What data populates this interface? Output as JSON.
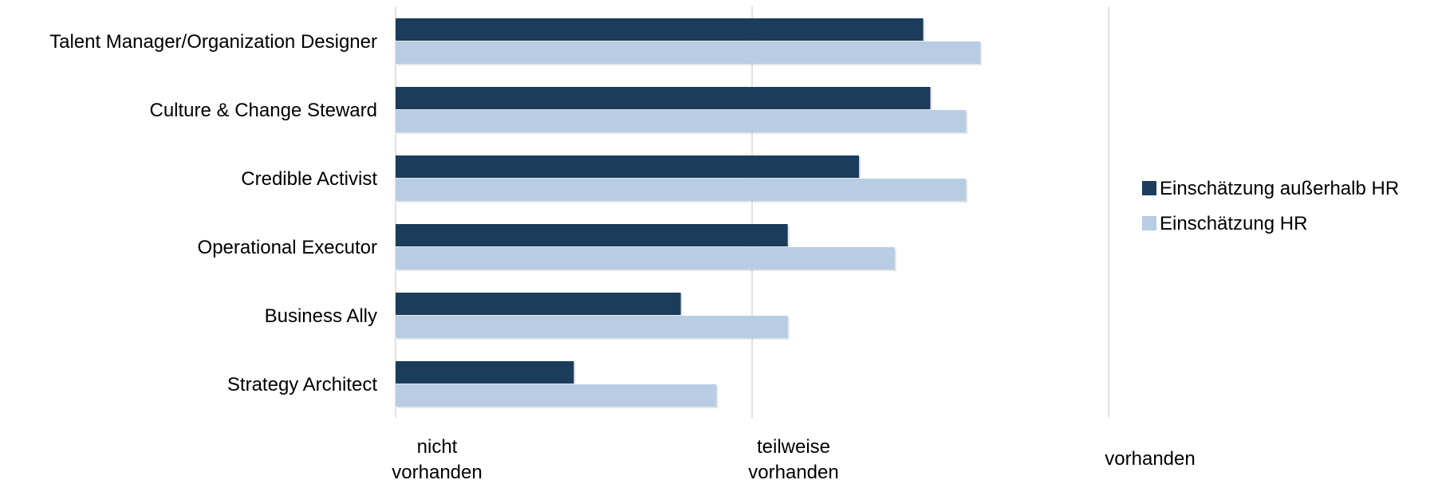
{
  "chart_data": {
    "type": "bar",
    "orientation": "horizontal",
    "categories": [
      "Talent Manager/Organization Designer",
      "Culture & Change Steward",
      "Credible Activist",
      "Operational Executor",
      "Business Ally",
      "Strategy Architect"
    ],
    "series": [
      {
        "name": "Einschätzung außerhalb HR",
        "color": "#1b3d5b",
        "values": [
          1.48,
          1.5,
          1.3,
          1.1,
          0.8,
          0.5
        ]
      },
      {
        "name": "Einschätzung HR",
        "color": "#b8cce4",
        "values": [
          1.64,
          1.6,
          1.6,
          1.4,
          1.1,
          0.9
        ]
      }
    ],
    "xlim": [
      0,
      2
    ],
    "x_ticks": [
      {
        "value": 0,
        "lines": [
          "nicht",
          "vorhanden"
        ]
      },
      {
        "value": 1,
        "lines": [
          "teilweise",
          "vorhanden"
        ]
      },
      {
        "value": 2,
        "lines": [
          "vorhanden"
        ]
      }
    ],
    "grid": true,
    "legend_position": "right"
  }
}
